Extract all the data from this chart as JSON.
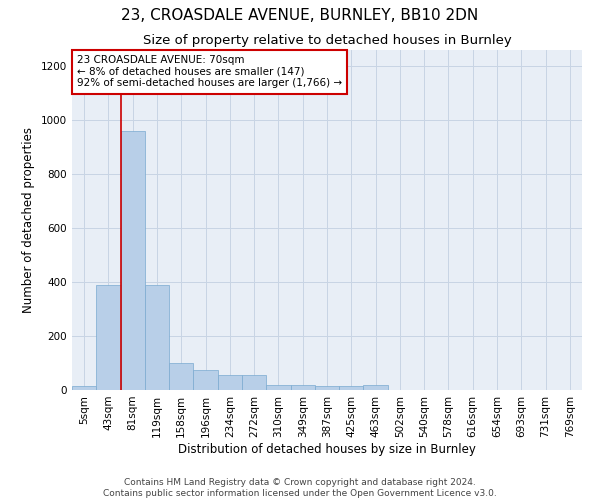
{
  "title": "23, CROASDALE AVENUE, BURNLEY, BB10 2DN",
  "subtitle": "Size of property relative to detached houses in Burnley",
  "xlabel": "Distribution of detached houses by size in Burnley",
  "ylabel": "Number of detached properties",
  "footer_line1": "Contains HM Land Registry data © Crown copyright and database right 2024.",
  "footer_line2": "Contains public sector information licensed under the Open Government Licence v3.0.",
  "categories": [
    "5sqm",
    "43sqm",
    "81sqm",
    "119sqm",
    "158sqm",
    "196sqm",
    "234sqm",
    "272sqm",
    "310sqm",
    "349sqm",
    "387sqm",
    "425sqm",
    "463sqm",
    "502sqm",
    "540sqm",
    "578sqm",
    "616sqm",
    "654sqm",
    "693sqm",
    "731sqm",
    "769sqm"
  ],
  "values": [
    15,
    390,
    960,
    390,
    100,
    75,
    55,
    55,
    20,
    20,
    15,
    15,
    20,
    0,
    0,
    0,
    0,
    0,
    0,
    0,
    0
  ],
  "bar_color": "#b8cfe8",
  "bar_edge_color": "#7aaad0",
  "red_line_x": 1.5,
  "ylim": [
    0,
    1260
  ],
  "yticks": [
    0,
    200,
    400,
    600,
    800,
    1000,
    1200
  ],
  "annotation_text": "23 CROASDALE AVENUE: 70sqm\n← 8% of detached houses are smaller (147)\n92% of semi-detached houses are larger (1,766) →",
  "annotation_box_color": "#ffffff",
  "annotation_box_edge_color": "#cc0000",
  "background_color": "#ffffff",
  "plot_bg_color": "#e8eef6",
  "grid_color": "#c8d4e4",
  "title_fontsize": 11,
  "subtitle_fontsize": 9.5,
  "axis_label_fontsize": 8.5,
  "tick_fontsize": 7.5,
  "annotation_fontsize": 7.5,
  "footer_fontsize": 6.5
}
